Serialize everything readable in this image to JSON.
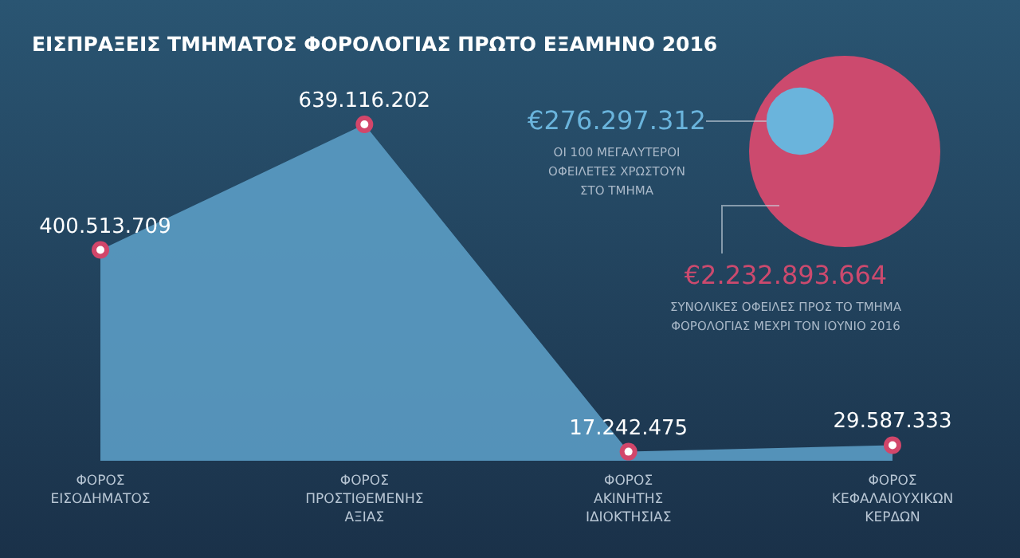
{
  "chart_data": [
    {
      "type": "area",
      "title": "ΕΙΣΠΡΑΞΕΙΣ ΤΜΗΜΑΤΟΣ ΦΟΡΟΛΟΓΙΑΣ ΠΡΩΤΟ ΕΞΑΜΗΝΟ 2016",
      "categories": [
        "ΦΟΡΟΣ\nΕΙΣΟΔΗΜΑΤΟΣ",
        "ΦΟΡΟΣ\nΠΡΟΣΤΙΘΕΜΕΝΗΣ\nΑΞΙΑΣ",
        "ΦΟΡΟΣ\nΑΚΙΝΗΤΗΣ\nΙΔΙΟΚΤΗΣΙΑΣ",
        "ΦΟΡΟΣ\nΚΕΦΑΛΑΙΟΥΧΙΚΩΝ\nΚΕΡΔΩΝ"
      ],
      "values": [
        400513709,
        639116202,
        17242475,
        29587333
      ],
      "value_labels": [
        "400.513.709",
        "639.116.202",
        "17.242.475",
        "29.587.333"
      ],
      "color": "#5b9cc4",
      "marker": "circle",
      "tick_labels": "x"
    },
    {
      "type": "other",
      "categories": [
        "ΟΙ 100 ΜΕΓΑΛΥΤΕΡΟΙ\nΟΦΕΙΛΕΤΕΣ ΧΡΩΣΤΟΥΝ\nΣΤΟ ΤΜΗΜΑ",
        "ΣΥΝΟΛΙΚΕΣ ΟΦΕΙΛΕΣ ΠΡΟΣ ΤΟ ΤΜΗΜΑ\nΦΟΡΟΛΟΓΙΑΣ ΜΕΧΡΙ ΤΟΝ ΙΟΥΝΙΟ 2016"
      ],
      "values": [
        276297312,
        2232893664
      ],
      "value_labels": [
        "€276.297.312",
        "€2.232.893.664"
      ],
      "colors": [
        "#6ab4dc",
        "#cc4a6e"
      ]
    }
  ]
}
